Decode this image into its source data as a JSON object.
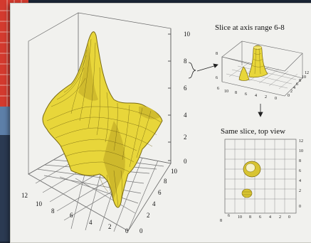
{
  "figure": {
    "main_plot": {
      "z_ticks": [
        "10",
        "8",
        "6",
        "4",
        "2",
        "0"
      ],
      "left_axis_ticks": [
        "12",
        "10",
        "8",
        "6",
        "4",
        "2",
        "0"
      ],
      "right_axis_ticks": [
        "0",
        "2",
        "4",
        "6",
        "8",
        "10"
      ]
    },
    "slice_plot": {
      "title": "Slice at axis range 6-8",
      "z_ticks": [
        "8",
        "6"
      ],
      "front_ticks": [
        "6",
        "10",
        "8",
        "6",
        "4",
        "2",
        "0"
      ],
      "right_ticks": [
        "12",
        "10",
        "8",
        "6",
        "4",
        "2",
        "0"
      ]
    },
    "top_view": {
      "title": "Same slice, top view",
      "right_ticks": [
        "12",
        "10",
        "8",
        "6",
        "4",
        "2",
        "0"
      ],
      "bottom_ticks": [
        "8",
        "6",
        "10",
        "8",
        "6",
        "4",
        "2",
        "0"
      ]
    }
  },
  "colors": {
    "surface": "#e8d63a",
    "surface_dark": "#9a8a1c",
    "card": "#f1f1ee",
    "background": "#1b2535"
  }
}
